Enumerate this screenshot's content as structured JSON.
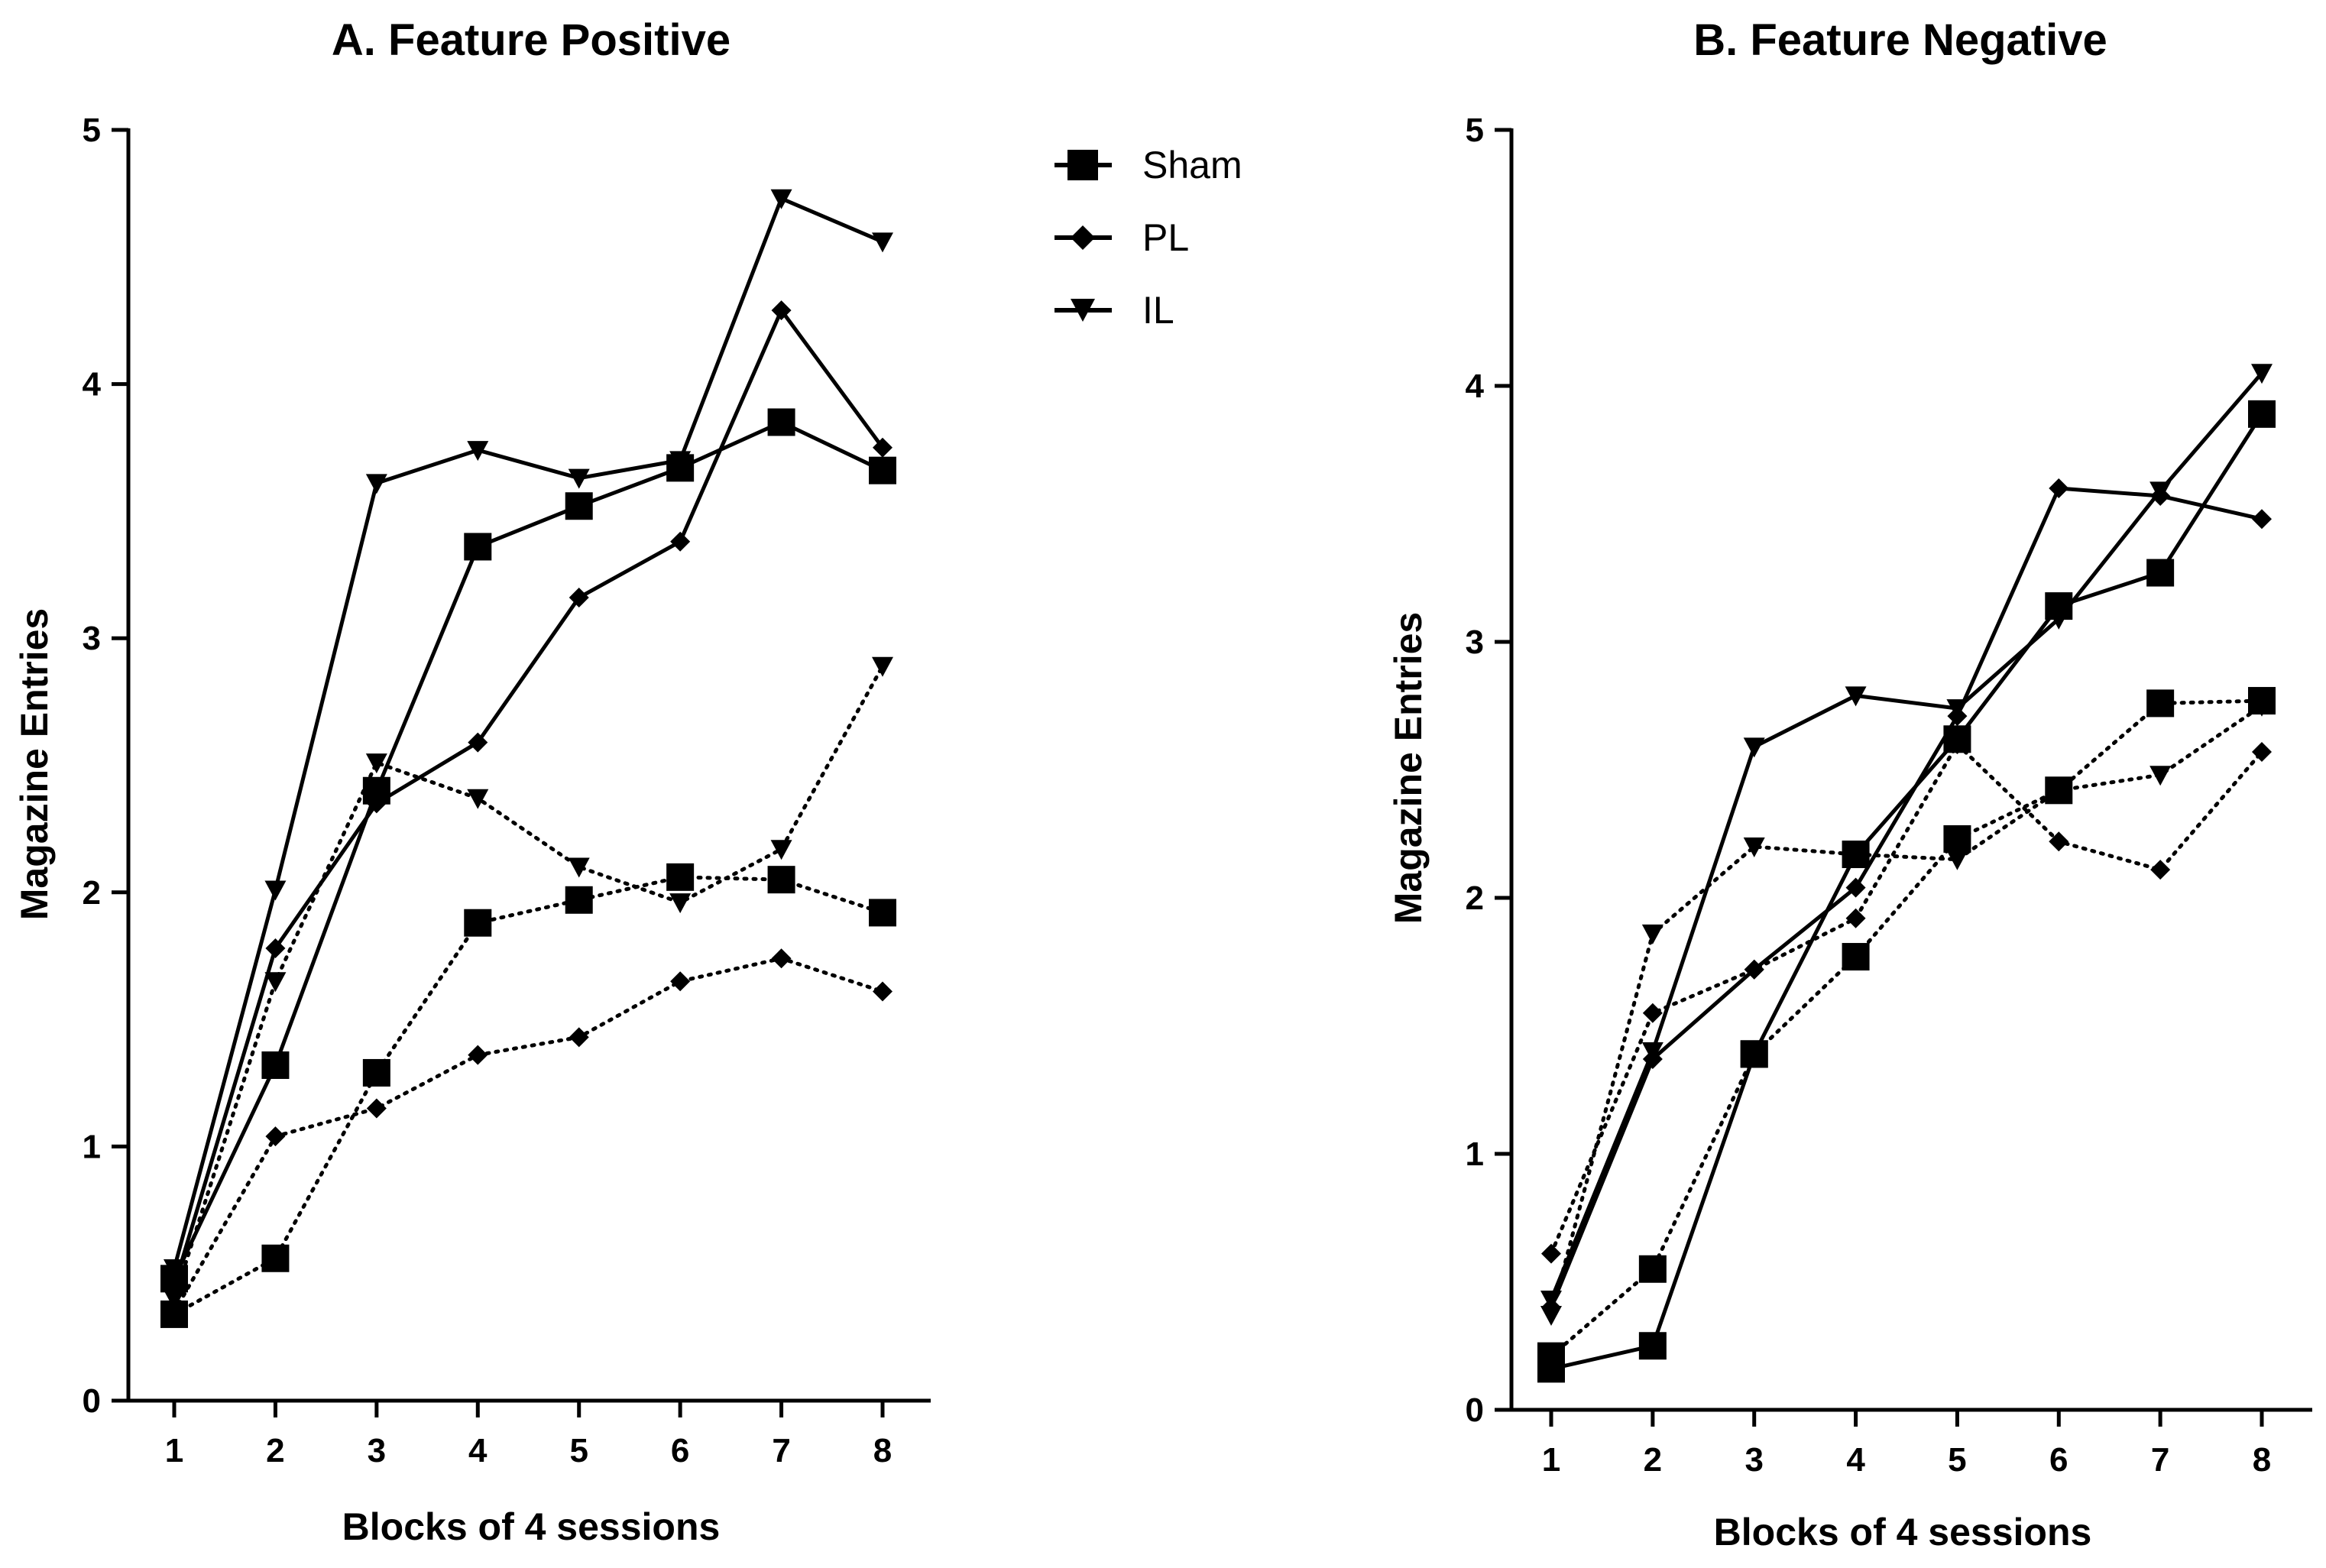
{
  "chart_data": [
    {
      "type": "line",
      "title": "A. Feature Positive",
      "xlabel": "Blocks of 4 sessions",
      "ylabel": "Magazine Entries",
      "categories": [
        "1",
        "2",
        "3",
        "4",
        "5",
        "6",
        "7",
        "8"
      ],
      "yticks": [
        "0",
        "1",
        "2",
        "3",
        "4",
        "5"
      ],
      "ylim": [
        0,
        5
      ],
      "series": [
        {
          "name": "Sham",
          "marker": "square",
          "line": "solid",
          "values": [
            0.48,
            1.32,
            2.4,
            3.36,
            3.52,
            3.67,
            3.85,
            3.66
          ]
        },
        {
          "name": "PL",
          "marker": "diamond",
          "line": "solid",
          "values": [
            0.45,
            1.78,
            2.35,
            2.59,
            3.16,
            3.38,
            4.29,
            3.75
          ]
        },
        {
          "name": "IL",
          "marker": "triangle-down",
          "line": "solid",
          "values": [
            0.52,
            2.01,
            3.61,
            3.74,
            3.63,
            3.7,
            4.73,
            4.56
          ]
        },
        {
          "name": "Sham",
          "marker": "square",
          "line": "dotted",
          "values": [
            0.34,
            0.56,
            1.29,
            1.88,
            1.97,
            2.06,
            2.05,
            1.92
          ]
        },
        {
          "name": "PL",
          "marker": "diamond",
          "line": "dotted",
          "values": [
            0.35,
            1.04,
            1.15,
            1.36,
            1.43,
            1.65,
            1.74,
            1.61
          ]
        },
        {
          "name": "IL",
          "marker": "triangle-down",
          "line": "dotted",
          "values": [
            0.4,
            1.65,
            2.51,
            2.37,
            2.1,
            1.96,
            2.17,
            2.89
          ]
        }
      ]
    },
    {
      "type": "line",
      "title": "B. Feature Negative",
      "xlabel": "Blocks of 4 sessions",
      "ylabel": "Magazine Entries",
      "categories": [
        "1",
        "2",
        "3",
        "4",
        "5",
        "6",
        "7",
        "8"
      ],
      "yticks": [
        "0",
        "1",
        "2",
        "3",
        "4",
        "5"
      ],
      "ylim": [
        0,
        5
      ],
      "series": [
        {
          "name": "Sham",
          "marker": "square",
          "line": "solid",
          "values": [
            0.16,
            0.25,
            1.39,
            2.17,
            2.62,
            3.14,
            3.27,
            3.89
          ]
        },
        {
          "name": "PL",
          "marker": "diamond",
          "line": "solid",
          "values": [
            0.4,
            1.37,
            1.72,
            2.04,
            2.71,
            3.6,
            3.57,
            3.48
          ]
        },
        {
          "name": "IL",
          "marker": "triangle-down",
          "line": "solid",
          "values": [
            0.43,
            1.4,
            2.59,
            2.79,
            2.74,
            3.09,
            3.59,
            4.05
          ]
        },
        {
          "name": "Sham",
          "marker": "square",
          "line": "dotted",
          "values": [
            0.21,
            0.55,
            1.39,
            1.77,
            2.23,
            2.42,
            2.76,
            2.77
          ]
        },
        {
          "name": "PL",
          "marker": "diamond",
          "line": "dotted",
          "values": [
            0.61,
            1.55,
            1.72,
            1.92,
            2.6,
            2.22,
            2.11,
            2.57
          ]
        },
        {
          "name": "IL",
          "marker": "triangle-down",
          "line": "dotted",
          "values": [
            0.37,
            1.86,
            2.2,
            2.17,
            2.15,
            2.42,
            2.48,
            2.75
          ]
        }
      ]
    }
  ],
  "legend": {
    "position": "top-center",
    "entries": [
      {
        "label": "Sham",
        "marker": "square"
      },
      {
        "label": "PL",
        "marker": "diamond"
      },
      {
        "label": "IL",
        "marker": "triangle-down"
      }
    ]
  }
}
